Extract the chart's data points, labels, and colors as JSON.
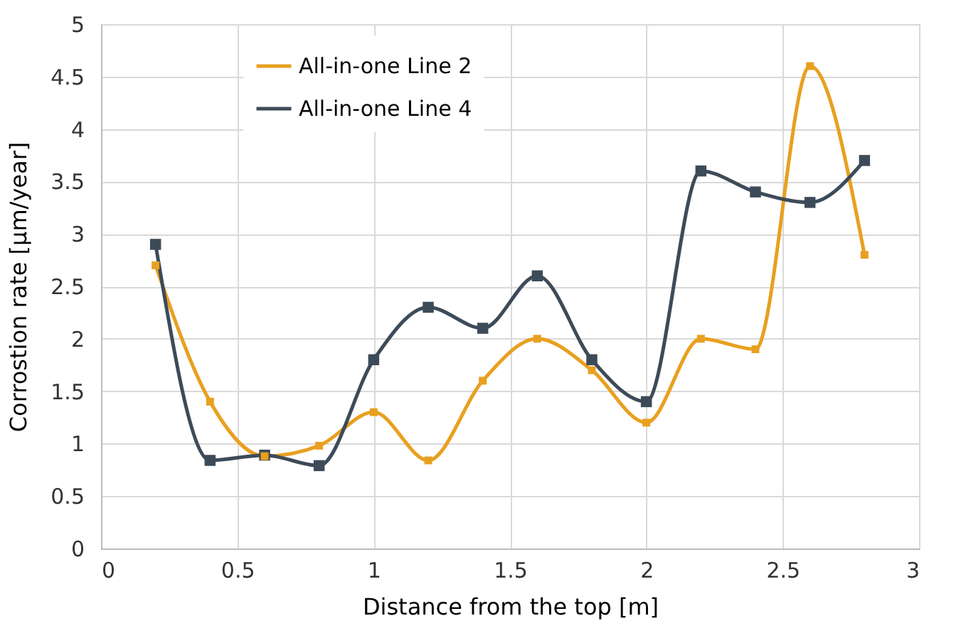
{
  "chart_data": {
    "type": "line",
    "xlabel": "Distance from the top [m]",
    "ylabel": "Corrostion rate [µm/year]",
    "x": [
      0.2,
      0.4,
      0.6,
      0.8,
      1.0,
      1.2,
      1.4,
      1.6,
      1.8,
      2.0,
      2.2,
      2.4,
      2.6,
      2.8
    ],
    "series": [
      {
        "name": "All-in-one Line 2",
        "color": "#e8a020",
        "values": [
          2.7,
          1.4,
          0.88,
          0.98,
          1.3,
          0.84,
          1.6,
          2.0,
          1.7,
          1.2,
          2.0,
          1.9,
          4.6,
          2.8
        ]
      },
      {
        "name": "All-in-one Line 4",
        "color": "#3d4b59",
        "values": [
          2.9,
          0.84,
          0.89,
          0.79,
          1.8,
          2.3,
          2.1,
          2.6,
          1.8,
          1.4,
          3.6,
          3.4,
          3.3,
          3.7
        ]
      }
    ],
    "xlim": [
      0,
      3
    ],
    "xticks": [
      0,
      0.5,
      1,
      1.5,
      2,
      2.5,
      3
    ],
    "ylim": [
      0,
      5
    ],
    "yticks": [
      0,
      0.5,
      1,
      1.5,
      2,
      2.5,
      3,
      3.5,
      4,
      4.5,
      5
    ],
    "grid": true,
    "legend": "top left",
    "marker": "square",
    "line_style": "solid"
  }
}
